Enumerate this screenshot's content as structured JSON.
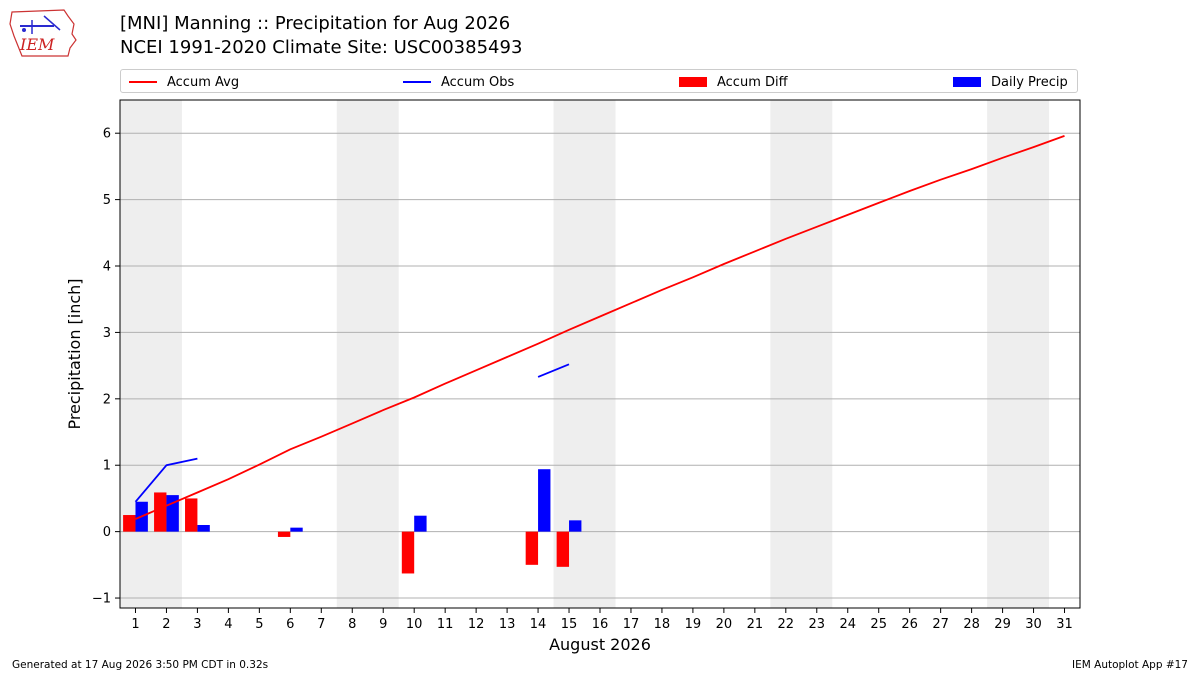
{
  "header": {
    "title_line1": "[MNI] Manning :: Precipitation for Aug 2026",
    "title_line2": "NCEI 1991-2020 Climate Site: USC00385493"
  },
  "logo": {
    "text": "IEM"
  },
  "footer": {
    "left": "Generated at 17 Aug 2026 3:50 PM CDT in 0.32s",
    "right": "IEM Autoplot App #17"
  },
  "chart_data": {
    "type": "bar",
    "xlabel": "August 2026",
    "ylabel": "Precipitation [inch]",
    "xlim": [
      0.5,
      31.5
    ],
    "ylim": [
      -1.15,
      6.5
    ],
    "yticks": [
      -1,
      0,
      1,
      2,
      3,
      4,
      5,
      6
    ],
    "x": [
      1,
      2,
      3,
      4,
      5,
      6,
      7,
      8,
      9,
      10,
      11,
      12,
      13,
      14,
      15,
      16,
      17,
      18,
      19,
      20,
      21,
      22,
      23,
      24,
      25,
      26,
      27,
      28,
      29,
      30,
      31
    ],
    "grid": "horizontal",
    "legend_position": "top",
    "weekend_shading": [
      [
        0.5,
        2.5
      ],
      [
        7.5,
        9.5
      ],
      [
        14.5,
        16.5
      ],
      [
        21.5,
        23.5
      ],
      [
        28.5,
        30.5
      ]
    ],
    "series": [
      {
        "name": "Accum Avg",
        "kind": "line",
        "color": "#ff0000",
        "points": [
          [
            1,
            0.19
          ],
          [
            2,
            0.39
          ],
          [
            3,
            0.59
          ],
          [
            4,
            0.79
          ],
          [
            5,
            1.01
          ],
          [
            6,
            1.24
          ],
          [
            7,
            1.43
          ],
          [
            8,
            1.63
          ],
          [
            9,
            1.83
          ],
          [
            10,
            2.02
          ],
          [
            11,
            2.23
          ],
          [
            12,
            2.43
          ],
          [
            13,
            2.63
          ],
          [
            14,
            2.83
          ],
          [
            15,
            3.04
          ],
          [
            16,
            3.24
          ],
          [
            17,
            3.44
          ],
          [
            18,
            3.64
          ],
          [
            19,
            3.83
          ],
          [
            20,
            4.03
          ],
          [
            21,
            4.22
          ],
          [
            22,
            4.41
          ],
          [
            23,
            4.59
          ],
          [
            24,
            4.77
          ],
          [
            25,
            4.95
          ],
          [
            26,
            5.13
          ],
          [
            27,
            5.3
          ],
          [
            28,
            5.46
          ],
          [
            29,
            5.63
          ],
          [
            30,
            5.79
          ],
          [
            31,
            5.96
          ]
        ]
      },
      {
        "name": "Accum Obs",
        "kind": "line",
        "color": "#0000ff",
        "segments": [
          [
            [
              1,
              0.45
            ],
            [
              2,
              1.0
            ],
            [
              3,
              1.1
            ]
          ],
          [
            [
              14,
              2.33
            ],
            [
              15,
              2.52
            ]
          ]
        ]
      },
      {
        "name": "Accum Diff",
        "kind": "bar",
        "color": "#ff0000",
        "offset": -0.2,
        "points": [
          [
            1,
            0.25
          ],
          [
            2,
            0.59
          ],
          [
            3,
            0.5
          ],
          [
            6,
            -0.08
          ],
          [
            10,
            -0.63
          ],
          [
            14,
            -0.5
          ],
          [
            15,
            -0.53
          ]
        ]
      },
      {
        "name": "Daily Precip",
        "kind": "bar",
        "color": "#0000ff",
        "offset": 0.2,
        "points": [
          [
            1,
            0.45
          ],
          [
            2,
            0.55
          ],
          [
            3,
            0.1
          ],
          [
            6,
            0.06
          ],
          [
            10,
            0.24
          ],
          [
            14,
            0.94
          ],
          [
            15,
            0.17
          ]
        ]
      }
    ]
  }
}
